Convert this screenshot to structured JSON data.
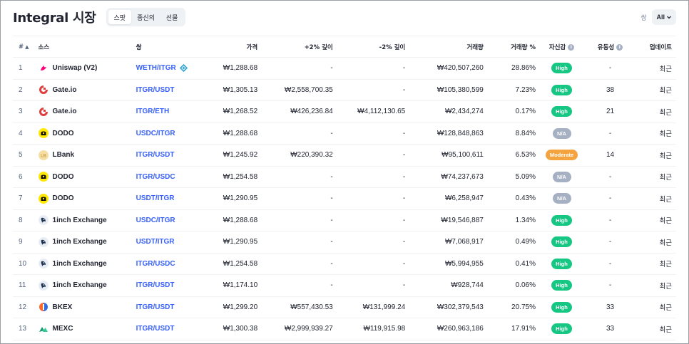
{
  "header": {
    "title": "Integral 시장",
    "tabs": [
      {
        "label": "스팟",
        "active": true
      },
      {
        "label": "종신의",
        "active": false
      },
      {
        "label": "선물",
        "active": false
      }
    ],
    "pair_label": "쌍",
    "pair_dropdown": "All"
  },
  "columns": {
    "idx": "#",
    "source": "소스",
    "pair": "쌍",
    "price": "가격",
    "plus2": "+2% 깊이",
    "minus2": "-2% 깊이",
    "volume": "거래량",
    "volume_pct": "거래량 %",
    "confidence": "자신감",
    "liquidity": "유동성",
    "updated": "업데이트"
  },
  "colors": {
    "high": "#16c784",
    "moderate": "#f5a33f",
    "na": "#a6b0c3",
    "link": "#3861fb"
  },
  "rows": [
    {
      "idx": "1",
      "source": "Uniswap (V2)",
      "logo": "uniswap-logo",
      "pair": "WETH/ITGR",
      "pair_icon": "dex-pair-icon",
      "price": "₩1,288.68",
      "plus2": "-",
      "minus2": "-",
      "volume": "₩420,507,260",
      "volume_pct": "28.86%",
      "confidence": "High",
      "liquidity": "-",
      "updated": "최근"
    },
    {
      "idx": "2",
      "source": "Gate.io",
      "logo": "gateio-logo",
      "pair": "ITGR/USDT",
      "pair_icon": "",
      "price": "₩1,305.13",
      "plus2": "₩2,558,700.35",
      "minus2": "-",
      "volume": "₩105,380,599",
      "volume_pct": "7.23%",
      "confidence": "High",
      "liquidity": "38",
      "updated": "최근"
    },
    {
      "idx": "3",
      "source": "Gate.io",
      "logo": "gateio-logo",
      "pair": "ITGR/ETH",
      "pair_icon": "",
      "price": "₩1,268.52",
      "plus2": "₩426,236.84",
      "minus2": "₩4,112,130.65",
      "volume": "₩2,434,274",
      "volume_pct": "0.17%",
      "confidence": "High",
      "liquidity": "21",
      "updated": "최근"
    },
    {
      "idx": "4",
      "source": "DODO",
      "logo": "dodo-logo",
      "pair": "USDC/ITGR",
      "pair_icon": "",
      "price": "₩1,288.68",
      "plus2": "-",
      "minus2": "-",
      "volume": "₩128,848,863",
      "volume_pct": "8.84%",
      "confidence": "N/A",
      "liquidity": "-",
      "updated": "최근"
    },
    {
      "idx": "5",
      "source": "LBank",
      "logo": "lbank-logo",
      "pair": "ITGR/USDT",
      "pair_icon": "",
      "price": "₩1,245.92",
      "plus2": "₩220,390.32",
      "minus2": "-",
      "volume": "₩95,100,611",
      "volume_pct": "6.53%",
      "confidence": "Moderate",
      "liquidity": "14",
      "updated": "최근"
    },
    {
      "idx": "6",
      "source": "DODO",
      "logo": "dodo-logo",
      "pair": "ITGR/USDC",
      "pair_icon": "",
      "price": "₩1,254.58",
      "plus2": "-",
      "minus2": "-",
      "volume": "₩74,237,673",
      "volume_pct": "5.09%",
      "confidence": "N/A",
      "liquidity": "-",
      "updated": "최근"
    },
    {
      "idx": "7",
      "source": "DODO",
      "logo": "dodo-logo",
      "pair": "USDT/ITGR",
      "pair_icon": "",
      "price": "₩1,290.95",
      "plus2": "-",
      "minus2": "-",
      "volume": "₩6,258,947",
      "volume_pct": "0.43%",
      "confidence": "N/A",
      "liquidity": "-",
      "updated": "최근"
    },
    {
      "idx": "8",
      "source": "1inch Exchange",
      "logo": "1inch-logo",
      "pair": "USDC/ITGR",
      "pair_icon": "",
      "price": "₩1,288.68",
      "plus2": "-",
      "minus2": "-",
      "volume": "₩19,546,887",
      "volume_pct": "1.34%",
      "confidence": "High",
      "liquidity": "-",
      "updated": "최근"
    },
    {
      "idx": "9",
      "source": "1inch Exchange",
      "logo": "1inch-logo",
      "pair": "USDT/ITGR",
      "pair_icon": "",
      "price": "₩1,290.95",
      "plus2": "-",
      "minus2": "-",
      "volume": "₩7,068,917",
      "volume_pct": "0.49%",
      "confidence": "High",
      "liquidity": "-",
      "updated": "최근"
    },
    {
      "idx": "10",
      "source": "1inch Exchange",
      "logo": "1inch-logo",
      "pair": "ITGR/USDC",
      "pair_icon": "",
      "price": "₩1,254.58",
      "plus2": "-",
      "minus2": "-",
      "volume": "₩5,994,955",
      "volume_pct": "0.41%",
      "confidence": "High",
      "liquidity": "-",
      "updated": "최근"
    },
    {
      "idx": "11",
      "source": "1inch Exchange",
      "logo": "1inch-logo",
      "pair": "ITGR/USDT",
      "pair_icon": "",
      "price": "₩1,174.10",
      "plus2": "-",
      "minus2": "-",
      "volume": "₩928,744",
      "volume_pct": "0.06%",
      "confidence": "High",
      "liquidity": "-",
      "updated": "최근"
    },
    {
      "idx": "12",
      "source": "BKEX",
      "logo": "bkex-logo",
      "pair": "ITGR/USDT",
      "pair_icon": "",
      "price": "₩1,299.20",
      "plus2": "₩557,430.53",
      "minus2": "₩131,999.24",
      "volume": "₩302,379,543",
      "volume_pct": "20.75%",
      "confidence": "High",
      "liquidity": "33",
      "updated": "최근"
    },
    {
      "idx": "13",
      "source": "MEXC",
      "logo": "mexc-logo",
      "pair": "ITGR/USDT",
      "pair_icon": "",
      "price": "₩1,300.38",
      "plus2": "₩2,999,939.27",
      "minus2": "₩119,915.98",
      "volume": "₩260,963,186",
      "volume_pct": "17.91%",
      "confidence": "High",
      "liquidity": "33",
      "updated": "최근"
    }
  ]
}
